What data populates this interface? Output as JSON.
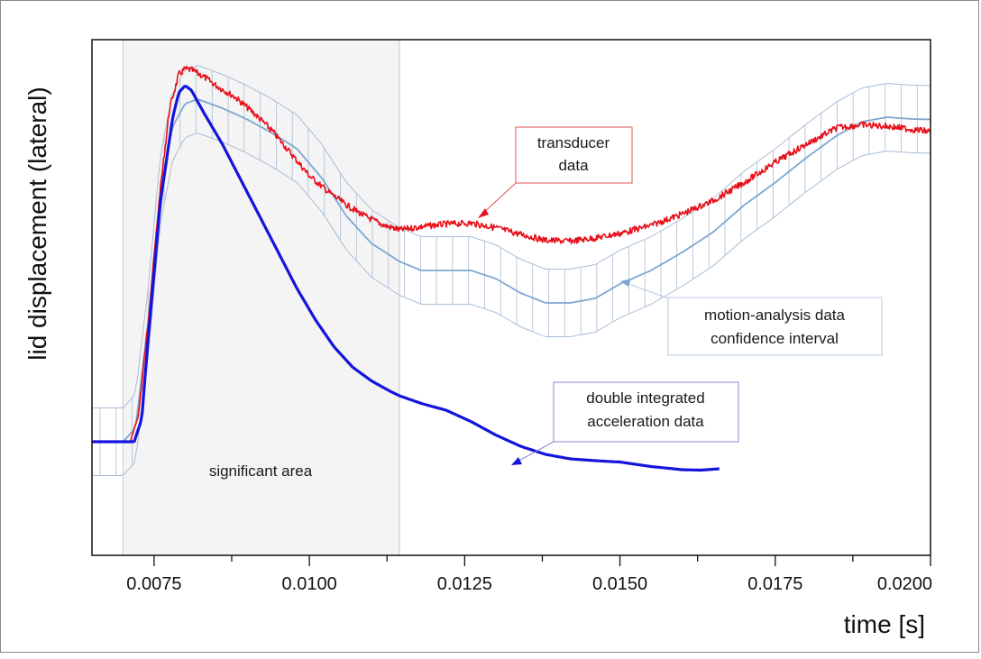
{
  "chart_data": {
    "type": "line",
    "title": "",
    "xlabel": "time [s]",
    "ylabel": "lid displacement (lateral)",
    "xlim": [
      0.0065,
      0.02
    ],
    "ylim": [
      0,
      1
    ],
    "y_tick_labels_shown": false,
    "x_ticks": [
      {
        "value": 0.0075,
        "label": "0.0075"
      },
      {
        "value": 0.01,
        "label": "0.0100"
      },
      {
        "value": 0.0125,
        "label": "0.0125"
      },
      {
        "value": 0.015,
        "label": "0.0150"
      },
      {
        "value": 0.0175,
        "label": "0.0175"
      },
      {
        "value": 0.02,
        "label": "0.0200"
      }
    ],
    "x_minor_step": 0.00125,
    "significant_area": {
      "x_start": 0.007,
      "x_end": 0.01145,
      "label": "significant area",
      "color": "#f4f4f4"
    },
    "series": [
      {
        "key": "transducer",
        "color": "#e8101a",
        "noisy": true,
        "x": [
          0.0065,
          0.007,
          0.00712,
          0.00725,
          0.0074,
          0.0076,
          0.00775,
          0.0079,
          0.008,
          0.0081,
          0.0083,
          0.0085,
          0.0088,
          0.0091,
          0.0094,
          0.0097,
          0.01,
          0.0103,
          0.0106,
          0.0109,
          0.0112,
          0.01145,
          0.0118,
          0.0122,
          0.0126,
          0.013,
          0.0134,
          0.0138,
          0.0142,
          0.0146,
          0.015,
          0.0155,
          0.016,
          0.0165,
          0.017,
          0.0175,
          0.018,
          0.0185,
          0.0189,
          0.0193,
          0.0197,
          0.02
        ],
        "y": [
          0.16,
          0.16,
          0.161,
          0.22,
          0.42,
          0.72,
          0.9,
          0.975,
          0.987,
          0.985,
          0.97,
          0.95,
          0.925,
          0.89,
          0.85,
          0.8,
          0.75,
          0.715,
          0.685,
          0.66,
          0.64,
          0.63,
          0.637,
          0.643,
          0.645,
          0.635,
          0.62,
          0.607,
          0.605,
          0.612,
          0.622,
          0.64,
          0.665,
          0.695,
          0.735,
          0.78,
          0.82,
          0.857,
          0.863,
          0.86,
          0.853,
          0.848
        ]
      },
      {
        "key": "acceleration",
        "color": "#1414dc",
        "noisy": false,
        "x": [
          0.0065,
          0.007,
          0.00718,
          0.0073,
          0.0074,
          0.0076,
          0.0078,
          0.0079,
          0.008,
          0.0081,
          0.0083,
          0.0086,
          0.0089,
          0.0092,
          0.0095,
          0.0098,
          0.0101,
          0.0104,
          0.0107,
          0.011,
          0.0113,
          0.01145,
          0.0118,
          0.0122,
          0.0126,
          0.013,
          0.0134,
          0.0138,
          0.0142,
          0.0146,
          0.015,
          0.0155,
          0.016,
          0.0163,
          0.0166
        ],
        "y": [
          0.16,
          0.16,
          0.16,
          0.21,
          0.38,
          0.69,
          0.88,
          0.935,
          0.95,
          0.94,
          0.89,
          0.82,
          0.74,
          0.66,
          0.58,
          0.5,
          0.43,
          0.37,
          0.325,
          0.295,
          0.272,
          0.262,
          0.245,
          0.23,
          0.205,
          0.175,
          0.15,
          0.132,
          0.122,
          0.118,
          0.115,
          0.105,
          0.098,
          0.097,
          0.1
        ]
      },
      {
        "key": "motion",
        "color": "#7fa6d0",
        "noisy": false,
        "x": [
          0.0065,
          0.007,
          0.0072,
          0.0074,
          0.0076,
          0.0078,
          0.008,
          0.0082,
          0.0086,
          0.009,
          0.0094,
          0.0098,
          0.0102,
          0.0106,
          0.011,
          0.01145,
          0.0118,
          0.0122,
          0.0126,
          0.013,
          0.0134,
          0.0138,
          0.0142,
          0.0146,
          0.015,
          0.0155,
          0.016,
          0.0165,
          0.017,
          0.0175,
          0.018,
          0.0185,
          0.0189,
          0.0193,
          0.0197,
          0.02
        ],
        "y": [
          0.16,
          0.16,
          0.19,
          0.42,
          0.72,
          0.86,
          0.91,
          0.92,
          0.9,
          0.875,
          0.845,
          0.81,
          0.745,
          0.66,
          0.6,
          0.56,
          0.54,
          0.54,
          0.54,
          0.522,
          0.49,
          0.468,
          0.468,
          0.478,
          0.51,
          0.54,
          0.58,
          0.625,
          0.685,
          0.735,
          0.79,
          0.84,
          0.87,
          0.88,
          0.876,
          0.875
        ]
      }
    ],
    "confidence_interval": {
      "half_width": 0.075,
      "color": "#aabdd4",
      "step": 0.000258
    },
    "annotations": [
      {
        "key": "transducer",
        "lines": [
          "transducer",
          "data"
        ],
        "border": "#e05555"
      },
      {
        "key": "motion",
        "lines": [
          "motion-analysis data",
          "confidence interval"
        ],
        "border": "#b9c8dc"
      },
      {
        "key": "acceleration",
        "lines": [
          "double integrated",
          "acceleration data"
        ],
        "border": "#8888d0"
      }
    ]
  }
}
